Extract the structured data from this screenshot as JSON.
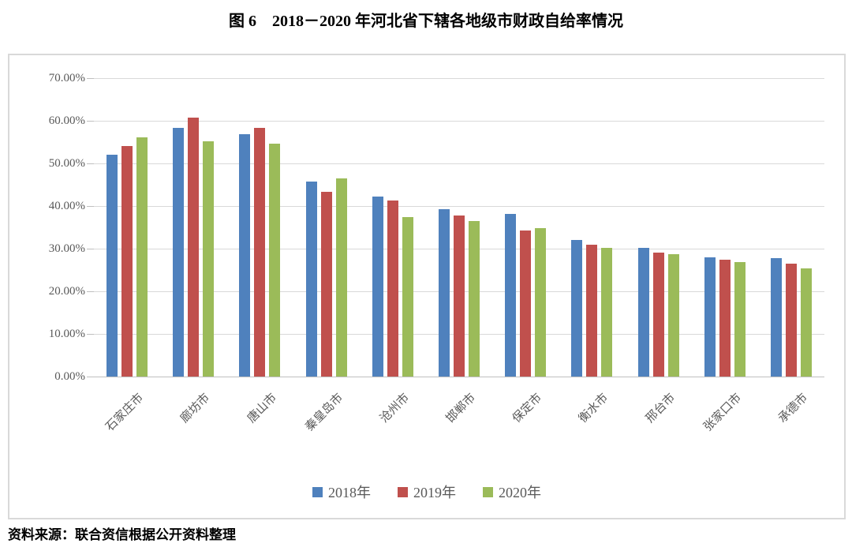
{
  "title": "图 6　2018－2020 年河北省下辖各地级市财政自给率情况",
  "source": "资料来源：联合资信根据公开资料整理",
  "chart_data": {
    "type": "bar",
    "title": "图 6　2018－2020 年河北省下辖各地级市财政自给率情况",
    "categories": [
      "石家庄市",
      "廊坊市",
      "唐山市",
      "秦皇岛市",
      "沧州市",
      "邯郸市",
      "保定市",
      "衡水市",
      "邢台市",
      "张家口市",
      "承德市"
    ],
    "series": [
      {
        "name": "2018年",
        "color": "#4F81BD",
        "values": [
          52.0,
          58.4,
          56.9,
          45.8,
          42.3,
          39.3,
          38.2,
          32.1,
          30.2,
          28.0,
          27.8
        ]
      },
      {
        "name": "2019年",
        "color": "#C0504D",
        "values": [
          54.0,
          60.8,
          58.4,
          43.3,
          41.3,
          37.7,
          34.2,
          31.0,
          29.0,
          27.5,
          26.5
        ]
      },
      {
        "name": "2020年",
        "color": "#9BBB59",
        "values": [
          56.2,
          55.2,
          54.7,
          46.5,
          37.4,
          36.4,
          34.9,
          30.2,
          28.7,
          26.9,
          25.3
        ]
      }
    ],
    "ylim": [
      0,
      70
    ],
    "ytick_step": 10,
    "ytick_suffix": "%",
    "ytick_decimals": 2,
    "grid": true,
    "legend_position": "bottom",
    "colors": {
      "gridline": "#D9D9D9",
      "axis_text": "#595959",
      "frame_border": "#D9D9D9"
    }
  }
}
